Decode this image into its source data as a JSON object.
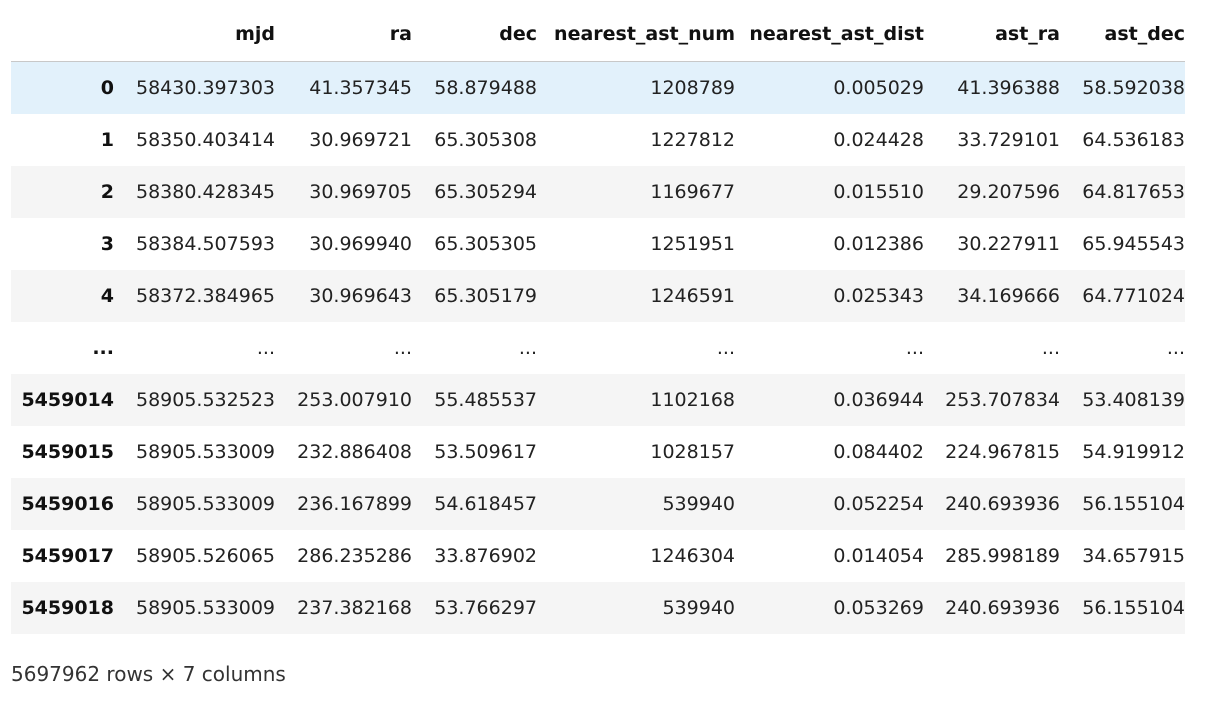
{
  "table": {
    "columns": [
      "",
      "mjd",
      "ra",
      "dec",
      "nearest_ast_num",
      "nearest_ast_dist",
      "ast_ra",
      "ast_dec"
    ],
    "rows": [
      {
        "index": "0",
        "cells": [
          "58430.397303",
          "41.357345",
          "58.879488",
          "1208789",
          "0.005029",
          "41.396388",
          "58.592038"
        ]
      },
      {
        "index": "1",
        "cells": [
          "58350.403414",
          "30.969721",
          "65.305308",
          "1227812",
          "0.024428",
          "33.729101",
          "64.536183"
        ]
      },
      {
        "index": "2",
        "cells": [
          "58380.428345",
          "30.969705",
          "65.305294",
          "1169677",
          "0.015510",
          "29.207596",
          "64.817653"
        ]
      },
      {
        "index": "3",
        "cells": [
          "58384.507593",
          "30.969940",
          "65.305305",
          "1251951",
          "0.012386",
          "30.227911",
          "65.945543"
        ]
      },
      {
        "index": "4",
        "cells": [
          "58372.384965",
          "30.969643",
          "65.305179",
          "1246591",
          "0.025343",
          "34.169666",
          "64.771024"
        ]
      },
      {
        "index": "...",
        "cells": [
          "...",
          "...",
          "...",
          "...",
          "...",
          "...",
          "..."
        ]
      },
      {
        "index": "5459014",
        "cells": [
          "58905.532523",
          "253.007910",
          "55.485537",
          "1102168",
          "0.036944",
          "253.707834",
          "53.408139"
        ]
      },
      {
        "index": "5459015",
        "cells": [
          "58905.533009",
          "232.886408",
          "53.509617",
          "1028157",
          "0.084402",
          "224.967815",
          "54.919912"
        ]
      },
      {
        "index": "5459016",
        "cells": [
          "58905.533009",
          "236.167899",
          "54.618457",
          "539940",
          "0.052254",
          "240.693936",
          "56.155104"
        ]
      },
      {
        "index": "5459017",
        "cells": [
          "58905.526065",
          "286.235286",
          "33.876902",
          "1246304",
          "0.014054",
          "285.998189",
          "34.657915"
        ]
      },
      {
        "index": "5459018",
        "cells": [
          "58905.533009",
          "237.382168",
          "53.766297",
          "539940",
          "0.053269",
          "240.693936",
          "56.155104"
        ]
      }
    ]
  },
  "summary": "5697962 rows × 7 columns"
}
